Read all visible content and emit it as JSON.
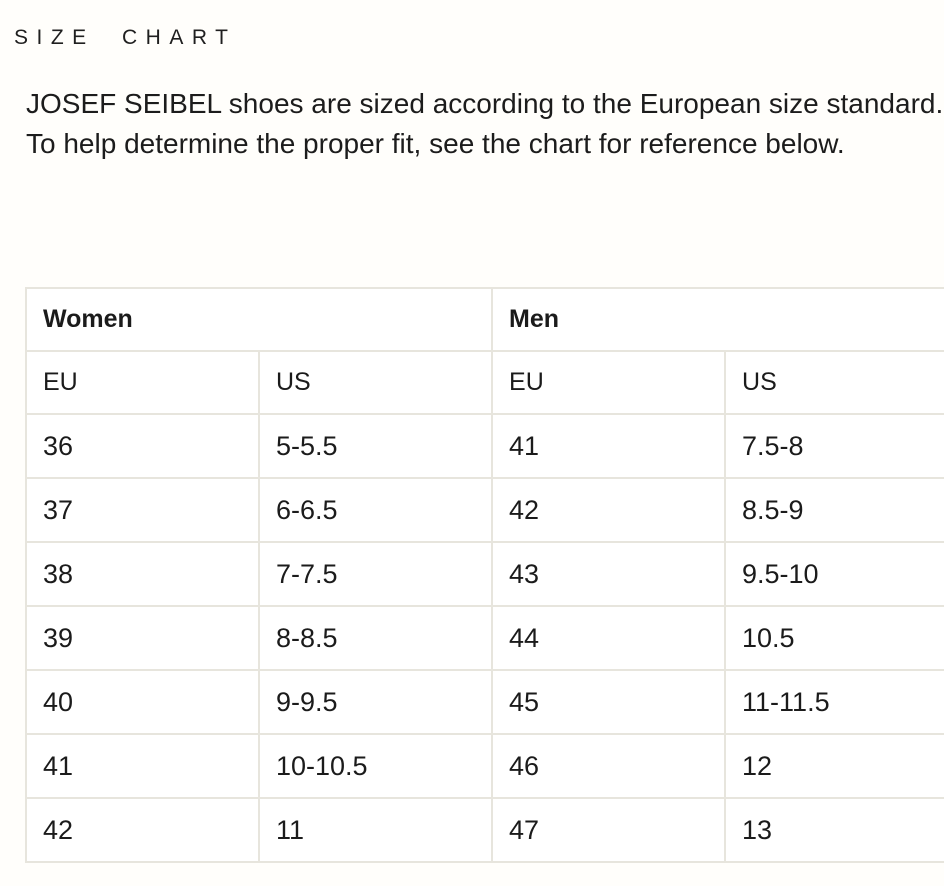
{
  "page": {
    "title": "SIZE CHART",
    "description": "JOSEF SEIBEL shoes are sized according to the European size standard. To help determine the proper fit, see the chart for reference below."
  },
  "size_table": {
    "groups": [
      {
        "label": "Women"
      },
      {
        "label": "Men"
      }
    ],
    "subheaders": [
      "EU",
      "US",
      "EU",
      "US"
    ],
    "rows": [
      [
        "36",
        "5-5.5",
        "41",
        "7.5-8"
      ],
      [
        "37",
        "6-6.5",
        "42",
        "8.5-9"
      ],
      [
        "38",
        "7-7.5",
        "43",
        "9.5-10"
      ],
      [
        "39",
        "8-8.5",
        "44",
        "10.5"
      ],
      [
        "40",
        "9-9.5",
        "45",
        "11-11.5"
      ],
      [
        "41",
        "10-10.5",
        "46",
        "12"
      ],
      [
        "42",
        "11",
        "47",
        "13"
      ]
    ]
  },
  "colors": {
    "page_background": "#fffefb",
    "cell_background": "#ffffff",
    "table_border": "#e7e5dd",
    "text": "#1b1b1b"
  }
}
